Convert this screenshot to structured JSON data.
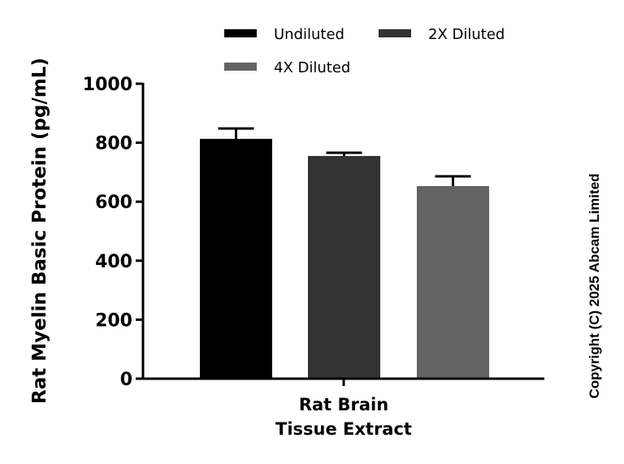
{
  "chart_data": {
    "type": "bar",
    "title": "",
    "xlabel": "",
    "ylabel": "Rat Myelin Basic Protein (pg/mL)",
    "ylim": [
      0,
      1000
    ],
    "yticks": [
      0,
      200,
      400,
      600,
      800,
      1000
    ],
    "grid": false,
    "legend_position": "top",
    "categories": [
      "Rat Brain Tissue Extract"
    ],
    "category_label_lines": [
      "Rat Brain",
      "Tissue Extract"
    ],
    "series": [
      {
        "name": "Undiluted",
        "values": [
          813
        ],
        "error": [
          35
        ],
        "color": "#000000"
      },
      {
        "name": "2X Diluted",
        "values": [
          755
        ],
        "error": [
          11
        ],
        "color": "#333333"
      },
      {
        "name": "4X Diluted",
        "values": [
          653
        ],
        "error": [
          33
        ],
        "color": "#636363"
      }
    ]
  },
  "copyright": "Copyright (C) 2025 Abcam Limited"
}
